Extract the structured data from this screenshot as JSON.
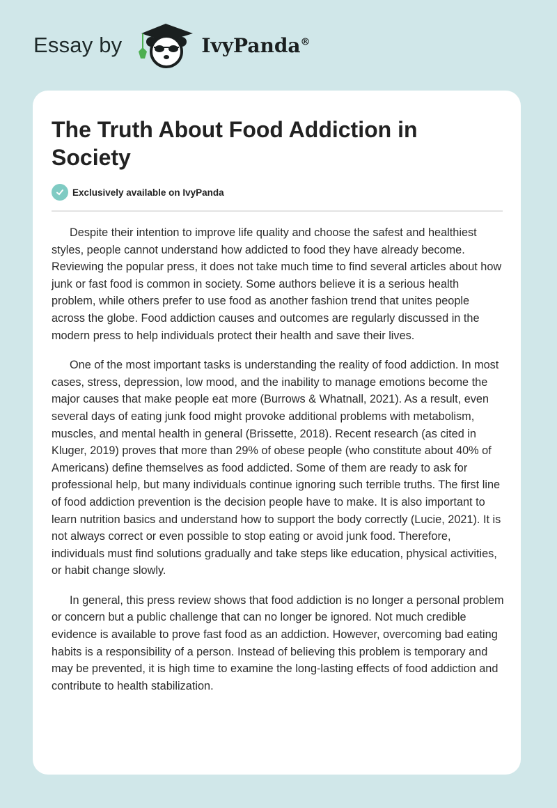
{
  "header": {
    "essay_by": "Essay by",
    "brand": "IvyPanda",
    "registered": "®"
  },
  "article": {
    "title": "The Truth About Food Addiction in Society",
    "badge": "Exclusively available on IvyPanda",
    "paragraphs": [
      "Despite their intention to improve life quality and choose the safest and healthiest styles, people cannot understand how addicted to food they have already become. Reviewing the popular press, it does not take much time to find several articles about how junk or fast food is common in society. Some authors believe it is a serious health problem, while others prefer to use food as another fashion trend that unites people across the globe. Food addiction causes and outcomes are regularly discussed in the modern press to help individuals protect their health and save their lives.",
      "One of the most important tasks is understanding the reality of food addiction. In most cases, stress, depression, low mood, and the inability to manage emotions become the major causes that make people eat more (Burrows & Whatnall, 2021). As a result, even several days of eating junk food might provoke additional problems with metabolism, muscles, and mental health in general (Brissette, 2018). Recent research (as cited in Kluger, 2019) proves that more than 29% of obese people (who constitute about 40% of Americans) define themselves as food addicted. Some of them are ready to ask for professional help, but many individuals continue ignoring such terrible truths. The first line of food addiction prevention is the decision people have to make. It is also important to learn nutrition basics and understand how to support the body correctly (Lucie, 2021). It is not always correct or even possible to stop eating or avoid junk food. Therefore, individuals must find solutions gradually and take steps like education, physical activities, or habit change slowly.",
      "In general, this press review shows that food addiction is no longer a personal problem or concern but a public challenge that can no longer be ignored. Not much credible evidence is available to prove fast food as an addiction. However, overcoming bad eating habits is a responsibility of a person. Instead of believing this problem is temporary and may be prevented, it is high time to examine the long-lasting effects of food addiction and contribute to health stabilization."
    ]
  },
  "colors": {
    "background": "#d0e7e9",
    "badge": "#7fcbc3",
    "ivy": "#4caf50"
  }
}
